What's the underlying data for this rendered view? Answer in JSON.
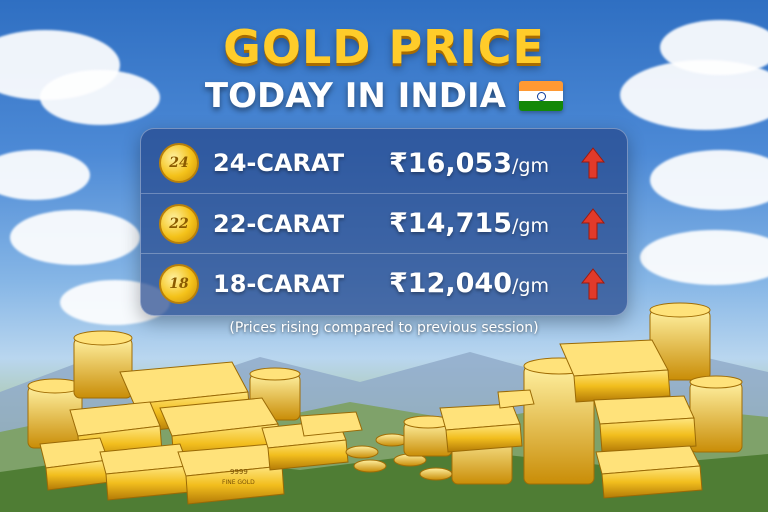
{
  "header": {
    "title_line1": "GOLD PRICE",
    "title_line2": "TODAY IN INDIA",
    "flag_icon": "india-flag-icon"
  },
  "rates": [
    {
      "coin_mark": "24",
      "carat": "24-CARAT",
      "price": "₹16,053",
      "unit": "/gm",
      "trend": "up"
    },
    {
      "coin_mark": "22",
      "carat": "22-CARAT",
      "price": "₹14,715",
      "unit": "/gm",
      "trend": "up"
    },
    {
      "coin_mark": "18",
      "carat": "18-CARAT",
      "price": "₹12,040",
      "unit": "/gm",
      "trend": "up"
    }
  ],
  "note": "(Prices rising compared to previous session)",
  "bar_engraving": {
    "line1": "9999",
    "line2": "FINE GOLD"
  },
  "colors": {
    "title_gold": "#ffcc2a",
    "panel_blue": "#26488c",
    "trend_up_red": "#e23a2a",
    "gold": "#f4c21a"
  }
}
